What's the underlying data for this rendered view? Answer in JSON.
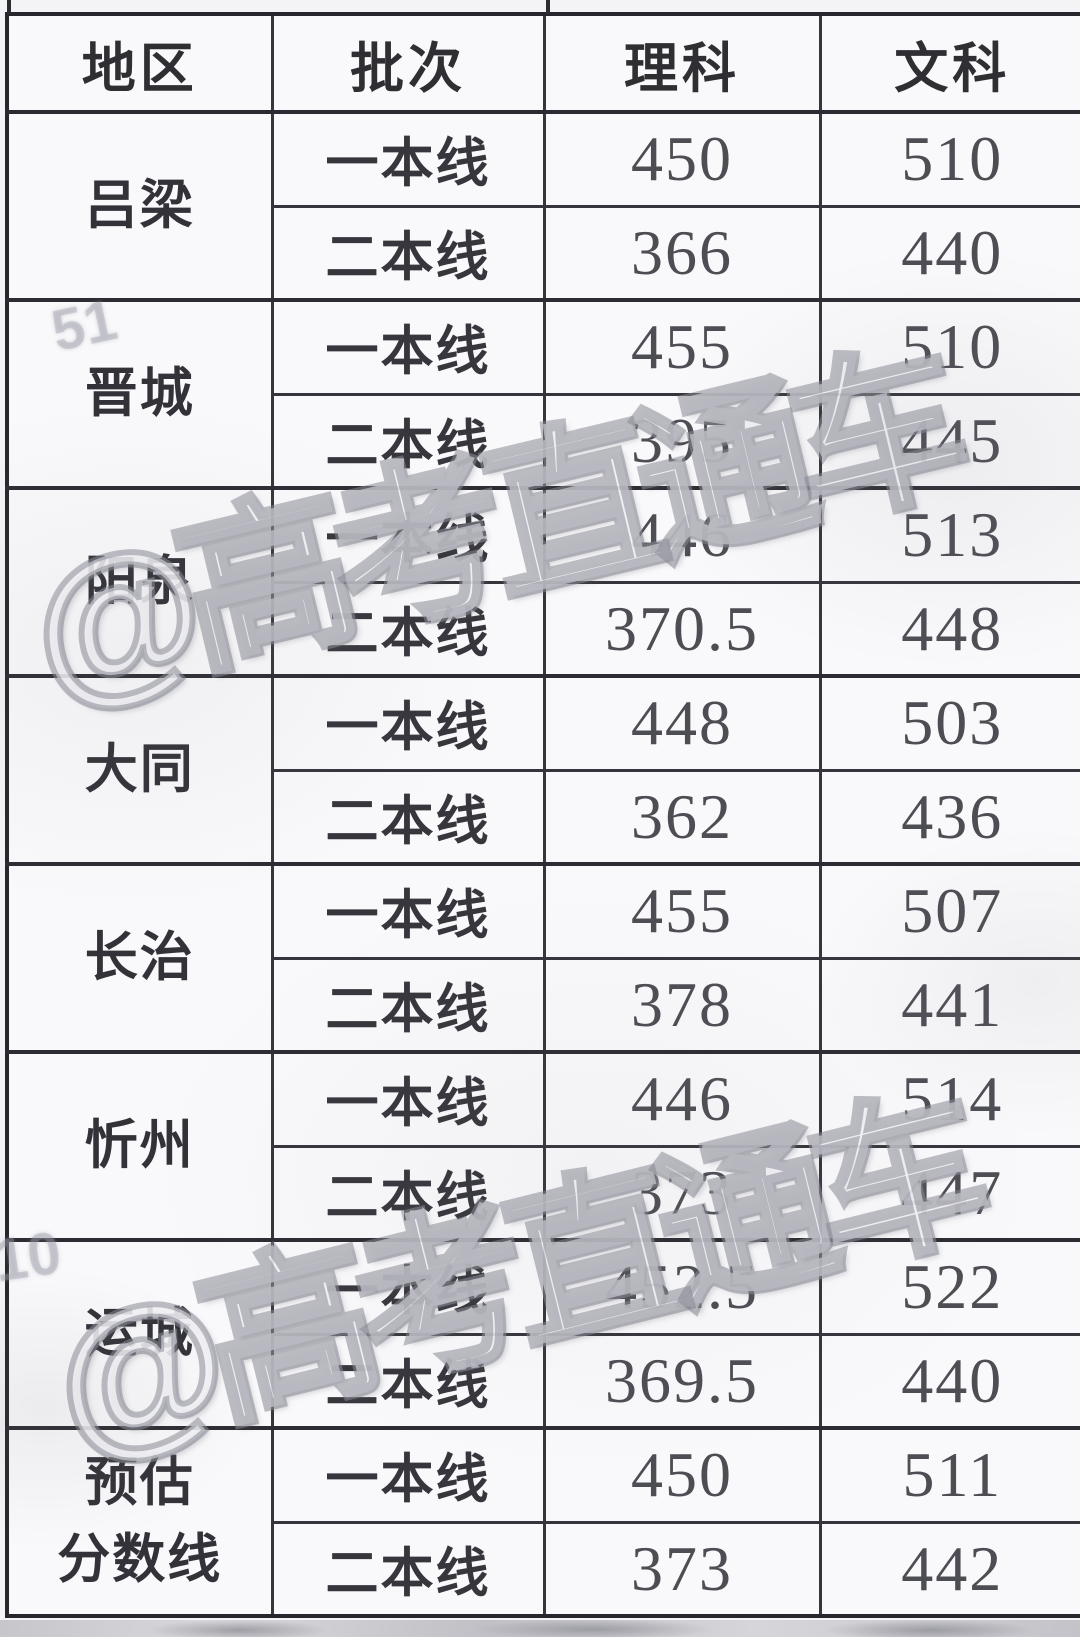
{
  "table": {
    "headers": [
      "地区",
      "批次",
      "理科",
      "文科"
    ],
    "regions": [
      {
        "name": "吕梁",
        "rows": [
          {
            "batch": "一本线",
            "science": "450",
            "arts": "510"
          },
          {
            "batch": "二本线",
            "science": "366",
            "arts": "440"
          }
        ]
      },
      {
        "name": "晋城",
        "rows": [
          {
            "batch": "一本线",
            "science": "455",
            "arts": "510"
          },
          {
            "batch": "二本线",
            "science": "395",
            "arts": "445"
          }
        ]
      },
      {
        "name": "阳泉",
        "rows": [
          {
            "batch": "一本线",
            "science": "446",
            "arts": "513"
          },
          {
            "batch": "二本线",
            "science": "370.5",
            "arts": "448"
          }
        ]
      },
      {
        "name": "大同",
        "rows": [
          {
            "batch": "一本线",
            "science": "448",
            "arts": "503"
          },
          {
            "batch": "二本线",
            "science": "362",
            "arts": "436"
          }
        ]
      },
      {
        "name": "长治",
        "rows": [
          {
            "batch": "一本线",
            "science": "455",
            "arts": "507"
          },
          {
            "batch": "二本线",
            "science": "378",
            "arts": "441"
          }
        ]
      },
      {
        "name": "忻州",
        "rows": [
          {
            "batch": "一本线",
            "science": "446",
            "arts": "514"
          },
          {
            "batch": "二本线",
            "science": "373",
            "arts": "447"
          }
        ]
      },
      {
        "name": "运城",
        "rows": [
          {
            "batch": "一本线",
            "science": "452.5",
            "arts": "522"
          },
          {
            "batch": "二本线",
            "science": "369.5",
            "arts": "440"
          }
        ]
      },
      {
        "name": "预估 分数线",
        "rows": [
          {
            "batch": "一本线",
            "science": "450",
            "arts": "511"
          },
          {
            "batch": "二本线",
            "science": "373",
            "arts": "442"
          }
        ]
      }
    ]
  },
  "watermark": {
    "text": "@高考直通车"
  },
  "ghosts": {
    "g1": "51",
    "g2": "10"
  }
}
